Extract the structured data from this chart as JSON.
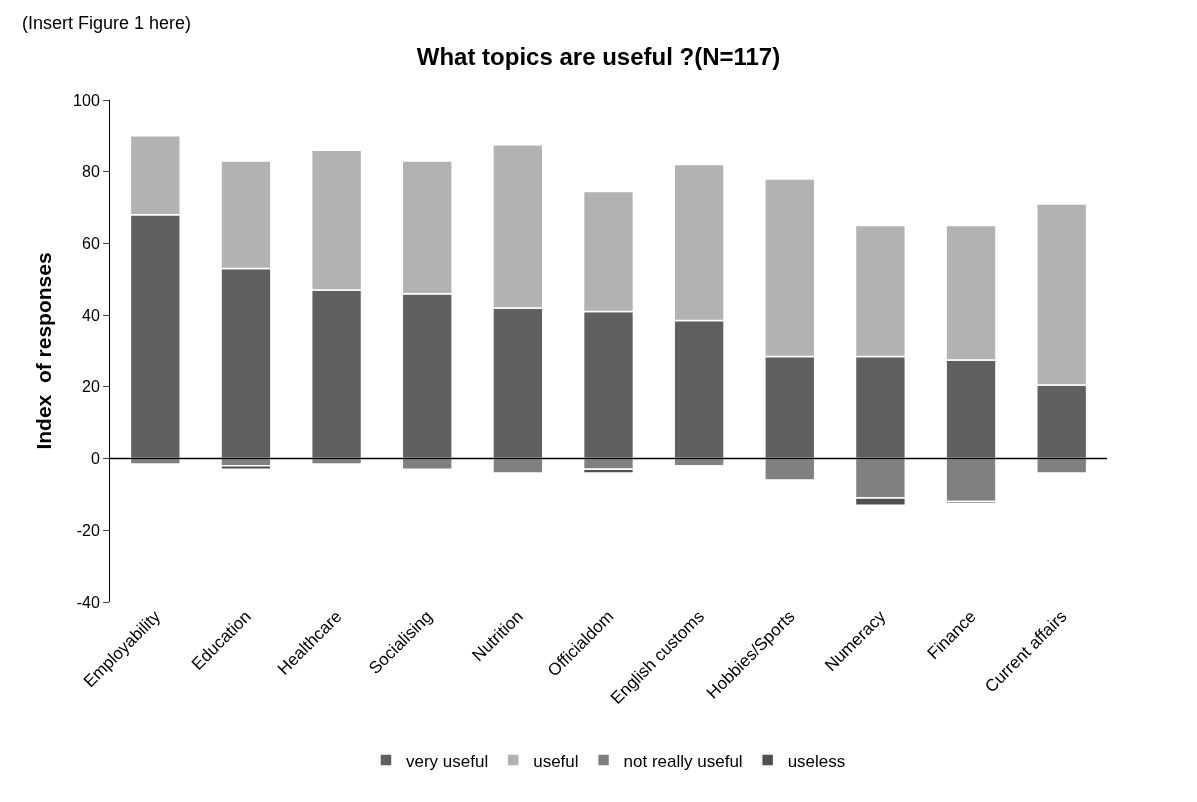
{
  "chart_data": {
    "type": "bar",
    "title": "What topics are useful ?(N=117)",
    "ylabel": "Index  of responses",
    "stacked": true,
    "annotations": [
      "(Insert Figure 1 here)"
    ],
    "categories": [
      "Employability",
      "Education",
      "Healthcare",
      "Socialising",
      "Nutrition",
      "Officialdom",
      "English customs",
      "Hobbies/Sports",
      "Numeracy",
      "Finance",
      "Current affairs"
    ],
    "series": [
      {
        "name": "very useful",
        "color": "#606060",
        "values": [
          68,
          53,
          47,
          46,
          42,
          41,
          38.5,
          28.5,
          28.5,
          27.5,
          20.5
        ]
      },
      {
        "name": "useful",
        "color": "#b2b2b2",
        "values": [
          22,
          30,
          39,
          37,
          45.5,
          33.5,
          43.5,
          49.5,
          36.5,
          37.5,
          50.5
        ]
      },
      {
        "name": "not really useful",
        "color": "#808080",
        "values": [
          -1.5,
          -2,
          -1.5,
          -3,
          -4,
          -3,
          -2,
          -6,
          -11,
          -12,
          -4
        ]
      },
      {
        "name": "useless",
        "color": "#505050",
        "values": [
          null,
          -1,
          null,
          null,
          null,
          -1,
          null,
          null,
          -2,
          -0.5,
          null
        ]
      }
    ],
    "ref_lines": [
      {
        "axis": "y",
        "value": 0,
        "color": "#000000"
      }
    ],
    "ylim": [
      -40,
      100
    ],
    "yticks": [
      -40,
      -20,
      0,
      20,
      40,
      60,
      80,
      100
    ],
    "grid": false,
    "legend": "bottom"
  }
}
